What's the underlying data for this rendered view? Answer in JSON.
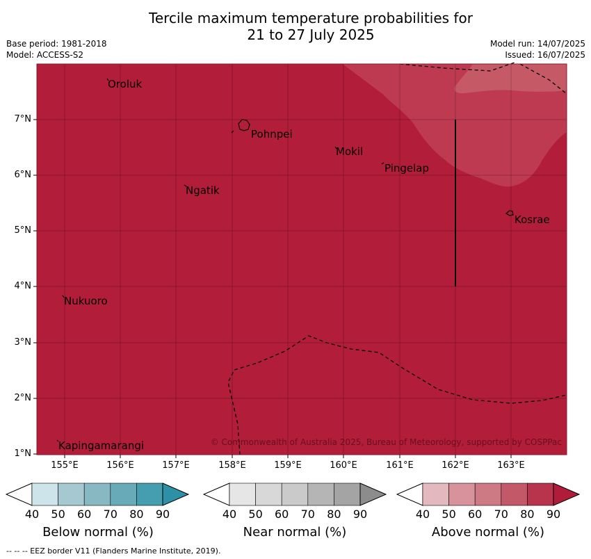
{
  "title": {
    "line1": "Tercile maximum temperature probabilities for",
    "line2": "21 to 27 July 2025"
  },
  "meta": {
    "base_period": "Base period: 1981-2018",
    "model": "Model: ACCESS-S2",
    "model_run": "Model run: 14/07/2025",
    "issued": "Issued: 16/07/2025"
  },
  "axes": {
    "x_ticks": [
      "155°E",
      "156°E",
      "157°E",
      "158°E",
      "159°E",
      "160°E",
      "161°E",
      "162°E",
      "163°E"
    ],
    "y_ticks": [
      "7°N",
      "6°N",
      "5°N",
      "4°N",
      "3°N",
      "2°N",
      "1°N"
    ]
  },
  "places": [
    "Oroluk",
    "Pohnpei",
    "Mokil",
    "Pingelap",
    "Ngatik",
    "Kosrae",
    "Nukuoro",
    "Kapingamarangi"
  ],
  "copyright": "© Commonwealth of Australia 2025, Bureau of Meteorology, supported by COSPPac",
  "colorbars": {
    "ticks": [
      "40",
      "50",
      "60",
      "70",
      "80",
      "90"
    ],
    "below": {
      "label": "Below normal (%)",
      "colors": [
        "#ffffff",
        "#cde4ea",
        "#a6c8d0",
        "#88b8c2",
        "#68aab8",
        "#449eb0",
        "#2d90a6"
      ]
    },
    "near": {
      "label": "Near normal (%)",
      "colors": [
        "#ffffff",
        "#e6e6e6",
        "#d8d8d8",
        "#cacaca",
        "#b5b5b5",
        "#a4a4a4",
        "#8c8c8c"
      ]
    },
    "above": {
      "label": "Above normal (%)",
      "colors": [
        "#ffffff",
        "#e3b8bf",
        "#d8929c",
        "#cd7a84",
        "#c25868",
        "#b8344c",
        "#b01c3a"
      ]
    }
  },
  "map_colors": {
    "above_90": "#b21d39",
    "above_80": "#bd3a50",
    "above_70": "#c55a66"
  },
  "footer": "--  --  -- EEZ border V11 (Flanders Marine Institute, 2019)."
}
